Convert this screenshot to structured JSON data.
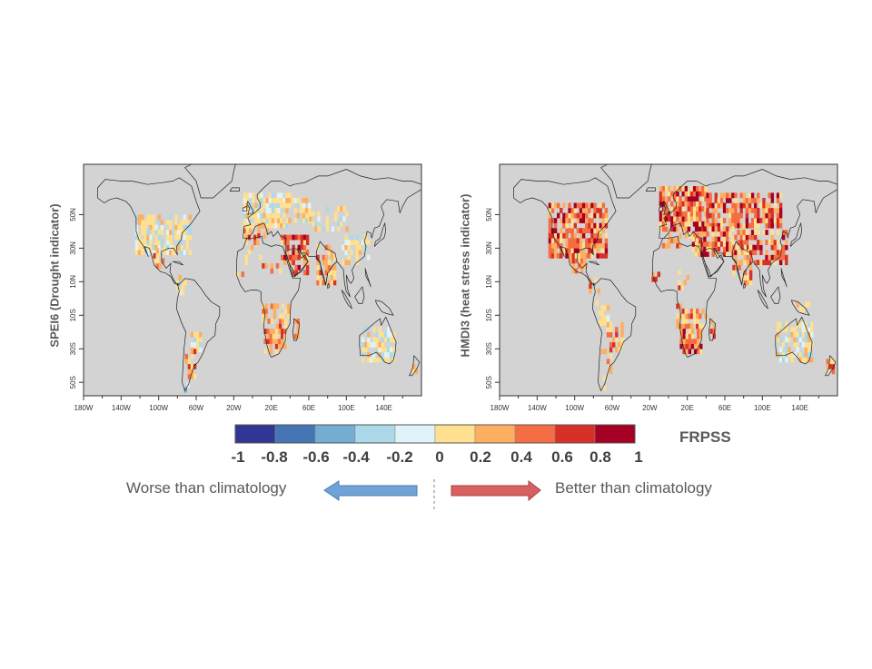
{
  "panels": [
    {
      "ylabel": "SPEI6 (Drought indicator)",
      "lat_labels": [
        "50N",
        "30N",
        "10N",
        "10S",
        "30S",
        "50S"
      ],
      "lon_labels": [
        "180W",
        "140W",
        "100W",
        "60W",
        "20W",
        "20E",
        "60E",
        "100E",
        "140E"
      ]
    },
    {
      "ylabel": "HMDI3 (heat stress indicator)",
      "lat_labels": [
        "50N",
        "30N",
        "10N",
        "10S",
        "30S",
        "50S"
      ],
      "lon_labels": [
        "180W",
        "140W",
        "100W",
        "60W",
        "20W",
        "20E",
        "60E",
        "100E",
        "140E"
      ]
    }
  ],
  "colorbar": {
    "title": "FRPSS",
    "ticks": [
      "-1",
      "-0.8",
      "-0.6",
      "-0.4",
      "-0.2",
      "0",
      "0.2",
      "0.4",
      "0.6",
      "0.8",
      "1"
    ],
    "colors": [
      "#313695",
      "#4575b4",
      "#74add1",
      "#abd9e9",
      "#e0f3f8",
      "#fee090",
      "#fdae61",
      "#f46d43",
      "#d73027",
      "#a50026"
    ]
  },
  "captions": {
    "worse": "Worse than climatology",
    "better": "Better than climatology"
  },
  "colors": {
    "ocean": "#d3d3d3",
    "worse_arrow": "#6fa3d8",
    "better_arrow": "#d96060"
  }
}
